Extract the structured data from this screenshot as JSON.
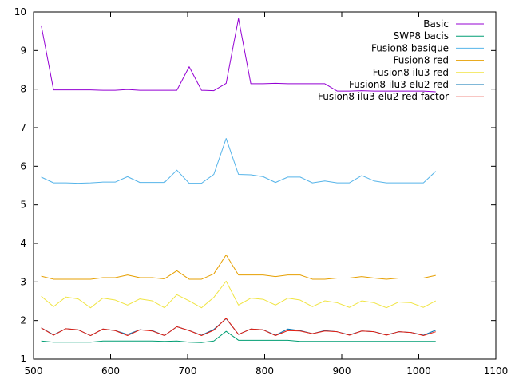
{
  "chart_data": {
    "type": "line",
    "title": "",
    "xlabel": "",
    "ylabel": "",
    "xlim": [
      500,
      1100
    ],
    "ylim": [
      1,
      10
    ],
    "xticks": [
      500,
      600,
      700,
      800,
      900,
      1000,
      1100
    ],
    "yticks": [
      1,
      2,
      3,
      4,
      5,
      6,
      7,
      8,
      9,
      10
    ],
    "grid": false,
    "legend_position": "top-right",
    "x": [
      510,
      526,
      542,
      558,
      574,
      590,
      606,
      622,
      638,
      654,
      670,
      686,
      702,
      718,
      734,
      750,
      766,
      782,
      798,
      814,
      830,
      846,
      862,
      878,
      894,
      910,
      926,
      942,
      958,
      974,
      990,
      1006,
      1022
    ],
    "series": [
      {
        "name": "Basic",
        "color": "#9400d3",
        "values": [
          9.65,
          7.98,
          7.98,
          7.98,
          7.98,
          7.97,
          7.97,
          7.99,
          7.97,
          7.97,
          7.97,
          7.97,
          8.58,
          7.97,
          7.96,
          8.15,
          9.83,
          8.14,
          8.14,
          8.15,
          8.14,
          8.14,
          8.14,
          8.14,
          7.95,
          7.95,
          7.96,
          7.95,
          7.95,
          7.95,
          7.95,
          7.95,
          7.93
        ]
      },
      {
        "name": "SWP8 bacis",
        "color": "#009e73",
        "values": [
          1.47,
          1.44,
          1.44,
          1.44,
          1.44,
          1.47,
          1.47,
          1.47,
          1.47,
          1.47,
          1.46,
          1.47,
          1.44,
          1.43,
          1.47,
          1.72,
          1.49,
          1.49,
          1.49,
          1.49,
          1.49,
          1.46,
          1.46,
          1.46,
          1.46,
          1.46,
          1.46,
          1.46,
          1.46,
          1.46,
          1.46,
          1.46,
          1.46
        ]
      },
      {
        "name": "Fusion8 basique",
        "color": "#56b4e9",
        "values": [
          5.72,
          5.57,
          5.57,
          5.56,
          5.57,
          5.59,
          5.59,
          5.73,
          5.58,
          5.58,
          5.58,
          5.9,
          5.56,
          5.56,
          5.79,
          6.72,
          5.79,
          5.78,
          5.73,
          5.58,
          5.72,
          5.72,
          5.57,
          5.62,
          5.57,
          5.57,
          5.76,
          5.62,
          5.57,
          5.57,
          5.57,
          5.57,
          5.87
        ]
      },
      {
        "name": "Fusion8 red",
        "color": "#e69f00",
        "values": [
          3.15,
          3.07,
          3.07,
          3.07,
          3.07,
          3.11,
          3.11,
          3.18,
          3.11,
          3.11,
          3.08,
          3.29,
          3.07,
          3.07,
          3.21,
          3.7,
          3.18,
          3.18,
          3.18,
          3.14,
          3.18,
          3.18,
          3.07,
          3.07,
          3.1,
          3.1,
          3.14,
          3.1,
          3.07,
          3.1,
          3.1,
          3.1,
          3.17
        ]
      },
      {
        "name": "Fusion8 ilu3 red",
        "color": "#f0e442",
        "values": [
          2.63,
          2.36,
          2.61,
          2.56,
          2.33,
          2.58,
          2.53,
          2.4,
          2.56,
          2.51,
          2.33,
          2.67,
          2.51,
          2.33,
          2.6,
          3.02,
          2.4,
          2.58,
          2.55,
          2.4,
          2.58,
          2.53,
          2.36,
          2.51,
          2.46,
          2.34,
          2.51,
          2.46,
          2.33,
          2.48,
          2.46,
          2.34,
          2.51
        ]
      },
      {
        "name": "Fusion8 ilu3  elu2 red",
        "color": "#0072b2",
        "values": [
          1.81,
          1.63,
          1.79,
          1.76,
          1.61,
          1.78,
          1.74,
          1.64,
          1.76,
          1.74,
          1.61,
          1.84,
          1.74,
          1.62,
          1.77,
          2.05,
          1.64,
          1.78,
          1.76,
          1.62,
          1.78,
          1.74,
          1.66,
          1.74,
          1.71,
          1.63,
          1.73,
          1.71,
          1.63,
          1.71,
          1.69,
          1.62,
          1.75
        ]
      },
      {
        "name": "Fusion8 ilu3 elu2 red factor",
        "color": "#e51e10",
        "values": [
          1.81,
          1.62,
          1.79,
          1.76,
          1.61,
          1.78,
          1.74,
          1.61,
          1.76,
          1.73,
          1.61,
          1.84,
          1.74,
          1.61,
          1.75,
          2.06,
          1.64,
          1.78,
          1.76,
          1.61,
          1.74,
          1.73,
          1.66,
          1.73,
          1.71,
          1.62,
          1.73,
          1.71,
          1.62,
          1.71,
          1.69,
          1.61,
          1.71
        ]
      }
    ]
  }
}
